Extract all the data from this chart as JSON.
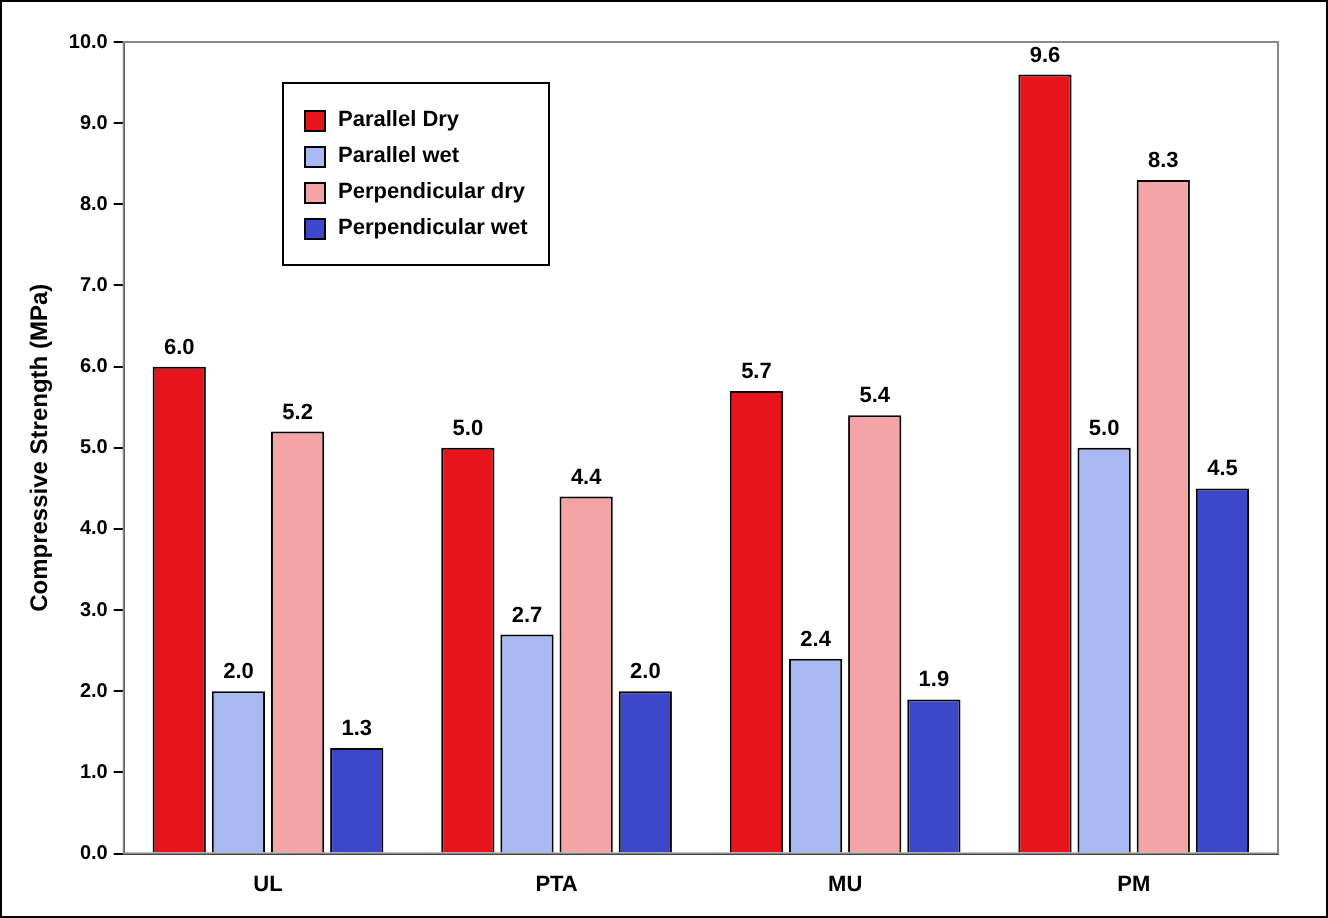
{
  "chart_data": {
    "type": "bar",
    "ylabel": "Compressive Strength (MPa)",
    "categories": [
      "UL",
      "PTA",
      "MU",
      "PM"
    ],
    "series": [
      {
        "name": "Parallel Dry",
        "color": "#e8141c",
        "values": [
          6.0,
          5.0,
          5.7,
          9.6
        ],
        "value_labels": [
          "6.0",
          "5.0",
          "5.7",
          "9.6"
        ]
      },
      {
        "name": "Parallel wet",
        "color": "#a8b8f0",
        "values": [
          2.0,
          2.7,
          2.4,
          5.0
        ],
        "value_labels": [
          "2.0",
          "2.7",
          "2.4",
          "5.0"
        ]
      },
      {
        "name": "Perpendicular dry",
        "color": "#f4a4a4",
        "values": [
          5.2,
          4.4,
          5.4,
          8.3
        ],
        "value_labels": [
          "5.2",
          "4.4",
          "5.4",
          "8.3"
        ]
      },
      {
        "name": "Perpendicular wet",
        "color": "#3c48c8",
        "values": [
          1.3,
          2.0,
          1.9,
          4.5
        ],
        "value_labels": [
          "1.3",
          "2.0",
          "1.9",
          "4.5"
        ]
      }
    ],
    "ylim": [
      0,
      10
    ],
    "yticks": [
      {
        "value": 0,
        "label": "0.0"
      },
      {
        "value": 1,
        "label": "1.0"
      },
      {
        "value": 2,
        "label": "2.0"
      },
      {
        "value": 3,
        "label": "3.0"
      },
      {
        "value": 4,
        "label": "4.0"
      },
      {
        "value": 5,
        "label": "5.0"
      },
      {
        "value": 6,
        "label": "6.0"
      },
      {
        "value": 7,
        "label": "7.0"
      },
      {
        "value": 8,
        "label": "8.0"
      },
      {
        "value": 9,
        "label": "9.0"
      },
      {
        "value": 10,
        "label": "10.0"
      }
    ],
    "grid": false,
    "legend": "top left"
  }
}
